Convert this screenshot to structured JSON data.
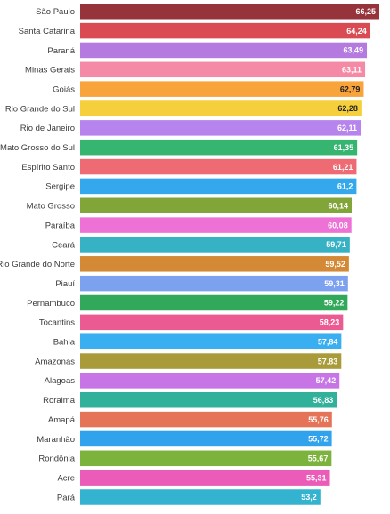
{
  "chart_data": {
    "type": "bar",
    "orientation": "horizontal",
    "title": "",
    "xlabel": "",
    "ylabel": "",
    "categories": [
      "São Paulo",
      "Santa Catarina",
      "Paraná",
      "Minas Gerais",
      "Goiás",
      "Rio Grande do Sul",
      "Rio de Janeiro",
      "Mato Grosso do Sul",
      "Espírito Santo",
      "Sergipe",
      "Mato Grosso",
      "Paraíba",
      "Ceará",
      "Rio Grande do Norte",
      "Piauí",
      "Pernambuco",
      "Tocantins",
      "Bahia",
      "Amazonas",
      "Alagoas",
      "Roraima",
      "Amapá",
      "Maranhão",
      "Rondônia",
      "Acre",
      "Pará"
    ],
    "values": [
      66.25,
      64.24,
      63.49,
      63.11,
      62.79,
      62.28,
      62.11,
      61.35,
      61.21,
      61.2,
      60.14,
      60.08,
      59.71,
      59.52,
      59.31,
      59.22,
      58.23,
      57.84,
      57.83,
      57.42,
      56.83,
      55.76,
      55.72,
      55.67,
      55.31,
      53.2
    ],
    "value_labels": [
      "66,25",
      "64,24",
      "63,49",
      "63,11",
      "62,79",
      "62,28",
      "62,11",
      "61,35",
      "61,21",
      "61,2",
      "60,14",
      "60,08",
      "59,71",
      "59,52",
      "59,31",
      "59,22",
      "58,23",
      "57,84",
      "57,83",
      "57,42",
      "56,83",
      "55,76",
      "55,72",
      "55,67",
      "55,31",
      "53,2"
    ],
    "colors": [
      "#97333b",
      "#d94a52",
      "#b57ae0",
      "#f58aa6",
      "#f8a43a",
      "#f5cf3c",
      "#b783ec",
      "#35b56f",
      "#ef6b73",
      "#33a8ec",
      "#82a53a",
      "#ee72d6",
      "#36b2c4",
      "#d48937",
      "#7ca1ef",
      "#32a85a",
      "#eb5a90",
      "#39aef0",
      "#a99b3a",
      "#c774e6",
      "#31b09a",
      "#e57358",
      "#31a3ed",
      "#7cb33d",
      "#ea5cb7",
      "#33b3cf"
    ],
    "label_colors": [
      "#ffffff",
      "#ffffff",
      "#ffffff",
      "#ffffff",
      "#222222",
      "#222222",
      "#ffffff",
      "#ffffff",
      "#ffffff",
      "#ffffff",
      "#ffffff",
      "#ffffff",
      "#ffffff",
      "#ffffff",
      "#ffffff",
      "#ffffff",
      "#ffffff",
      "#ffffff",
      "#ffffff",
      "#ffffff",
      "#ffffff",
      "#ffffff",
      "#ffffff",
      "#ffffff",
      "#ffffff",
      "#ffffff"
    ],
    "xlim": [
      0,
      66.25
    ],
    "grid": false,
    "legend": "none"
  }
}
